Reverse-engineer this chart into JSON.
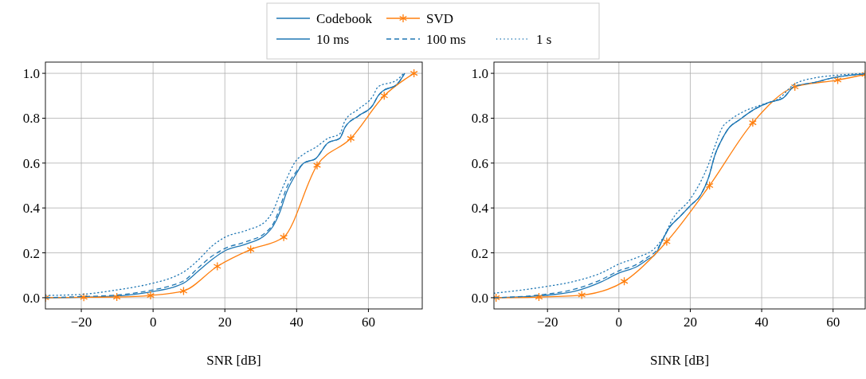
{
  "chart_data": [
    {
      "type": "line",
      "xlabel": "SNR [dB]",
      "xlim": [
        -30,
        75
      ],
      "ylim": [
        -0.05,
        1.05
      ],
      "xticks": [
        {
          "value": -20,
          "label": "−20"
        },
        0,
        20,
        40,
        60
      ],
      "yticks": [
        {
          "value": 0,
          "label": "0.0"
        },
        {
          "value": 0.2,
          "label": "0.2"
        },
        {
          "value": 0.4,
          "label": "0.4"
        },
        {
          "value": 0.6,
          "label": "0.6"
        },
        {
          "value": 0.8,
          "label": "0.8"
        },
        {
          "value": 1,
          "label": "1.0"
        }
      ],
      "grid": true,
      "legend": "top",
      "series": [
        {
          "name": "Codebook",
          "color": "#1f77b4",
          "line_style": "solid",
          "marker": "none",
          "x": [
            -30,
            -19.9,
            -9.5,
            0,
            5.3,
            9,
            12.7,
            16.4,
            20.1,
            26,
            31.3,
            33.5,
            35.3,
            37.2,
            39.8,
            42,
            45.3,
            48.7,
            52,
            53.5,
            57.2,
            61.3,
            62.7,
            63.9,
            67.9,
            70.1
          ],
          "values": [
            0,
            0.002,
            0.008,
            0.028,
            0.045,
            0.07,
            0.12,
            0.17,
            0.21,
            0.24,
            0.28,
            0.32,
            0.38,
            0.47,
            0.55,
            0.6,
            0.62,
            0.69,
            0.71,
            0.76,
            0.81,
            0.86,
            0.9,
            0.92,
            0.95,
            1
          ]
        },
        {
          "name": "SVD",
          "color": "#ff7f0e",
          "line_style": "solid",
          "marker": "cross",
          "x": [
            -30,
            -19.3,
            -10.1,
            -0.7,
            8.5,
            17.9,
            27.2,
            36.4,
            45.7,
            55.1,
            64.4,
            72.7
          ],
          "values": [
            0,
            0.002,
            0.003,
            0.01,
            0.03,
            0.14,
            0.215,
            0.27,
            0.59,
            0.71,
            0.9,
            1
          ]
        },
        {
          "name": "10 ms",
          "color": "#1f77b4",
          "line_style": "solid",
          "marker": "none"
        },
        {
          "name": "100 ms",
          "color": "#1f77b4",
          "line_style": "dashed",
          "marker": "none",
          "x": [
            -30,
            -20,
            -10,
            0,
            5.3,
            9,
            12.7,
            16.4,
            20.1,
            26,
            31.3,
            33.5,
            35.3,
            37.2,
            39.8,
            42,
            45.3,
            48.7,
            52,
            53.5,
            57.2,
            61.3,
            62.7,
            63.9,
            67.9,
            70.1
          ],
          "values": [
            0,
            0.005,
            0.012,
            0.035,
            0.055,
            0.08,
            0.135,
            0.185,
            0.22,
            0.25,
            0.29,
            0.33,
            0.4,
            0.49,
            0.56,
            0.6,
            0.62,
            0.69,
            0.71,
            0.76,
            0.81,
            0.86,
            0.9,
            0.92,
            0.95,
            1
          ]
        },
        {
          "name": "1 s",
          "color": "#1f77b4",
          "line_style": "dotted",
          "marker": "none",
          "x": [
            -30,
            -20,
            -10,
            0,
            5.3,
            9,
            12.7,
            16.4,
            20.1,
            26,
            31.3,
            33.5,
            35.3,
            37.2,
            39.8,
            42,
            45.3,
            48.7,
            52,
            53.5,
            57.2,
            61.3,
            62.7,
            67.9,
            69.8
          ],
          "values": [
            0.01,
            0.015,
            0.035,
            0.065,
            0.09,
            0.12,
            0.17,
            0.23,
            0.27,
            0.3,
            0.34,
            0.39,
            0.46,
            0.53,
            0.61,
            0.64,
            0.67,
            0.71,
            0.73,
            0.79,
            0.84,
            0.9,
            0.94,
            0.97,
            1
          ]
        }
      ]
    },
    {
      "type": "line",
      "xlabel": "SINR [dB]",
      "xlim": [
        -35,
        69
      ],
      "ylim": [
        -0.05,
        1.05
      ],
      "xticks": [
        {
          "value": -20,
          "label": "−20"
        },
        0,
        20,
        40,
        60
      ],
      "yticks": [
        {
          "value": 0,
          "label": "0.0"
        },
        {
          "value": 0.2,
          "label": "0.2"
        },
        {
          "value": 0.4,
          "label": "0.4"
        },
        {
          "value": 0.6,
          "label": "0.6"
        },
        {
          "value": 0.8,
          "label": "0.8"
        },
        {
          "value": 1,
          "label": "1.0"
        }
      ],
      "grid": true,
      "series": [
        {
          "color": "#1f77b4",
          "line_style": "solid",
          "marker": "none",
          "x": [
            -35,
            -22.4,
            -12,
            -5,
            0,
            5.2,
            8,
            10.5,
            12,
            14,
            17,
            20,
            23,
            25,
            27,
            29,
            31,
            33.5,
            38,
            42,
            46,
            49,
            55,
            60,
            69
          ],
          "values": [
            0,
            0.008,
            0.03,
            0.07,
            0.11,
            0.14,
            0.17,
            0.2,
            0.25,
            0.31,
            0.36,
            0.41,
            0.46,
            0.53,
            0.64,
            0.71,
            0.76,
            0.79,
            0.84,
            0.87,
            0.89,
            0.94,
            0.96,
            0.98,
            0.997
          ]
        },
        {
          "color": "#ff7f0e",
          "line_style": "solid",
          "marker": "cross",
          "x": [
            -34.4,
            -22.4,
            -10.4,
            1.5,
            13.4,
            25.4,
            37.5,
            49.3,
            61.3,
            69
          ],
          "values": [
            0,
            0.003,
            0.012,
            0.073,
            0.25,
            0.5,
            0.78,
            0.94,
            0.97,
            0.995
          ]
        },
        {
          "color": "#1f77b4",
          "line_style": "dashed",
          "marker": "none",
          "x": [
            -35,
            -22.4,
            -12,
            -5,
            0,
            5.2,
            8,
            10.5,
            12,
            14,
            17,
            20,
            23,
            25,
            27,
            29,
            31,
            33.5,
            38,
            42,
            46,
            49,
            55,
            60,
            69
          ],
          "values": [
            0,
            0.012,
            0.04,
            0.08,
            0.12,
            0.15,
            0.18,
            0.21,
            0.25,
            0.31,
            0.36,
            0.41,
            0.46,
            0.53,
            0.64,
            0.71,
            0.76,
            0.79,
            0.84,
            0.87,
            0.89,
            0.94,
            0.96,
            0.98,
            0.997
          ]
        },
        {
          "color": "#1f77b4",
          "line_style": "dotted",
          "marker": "none",
          "x": [
            -35,
            -22.4,
            -12,
            -5,
            0,
            5.2,
            10,
            12.5,
            15,
            20,
            23,
            25,
            27,
            29,
            31,
            35,
            40,
            45,
            49,
            55,
            60,
            69
          ],
          "values": [
            0.02,
            0.045,
            0.075,
            0.11,
            0.15,
            0.18,
            0.22,
            0.27,
            0.35,
            0.44,
            0.52,
            0.59,
            0.68,
            0.76,
            0.79,
            0.83,
            0.86,
            0.89,
            0.95,
            0.98,
            0.99,
            1
          ]
        }
      ]
    }
  ]
}
